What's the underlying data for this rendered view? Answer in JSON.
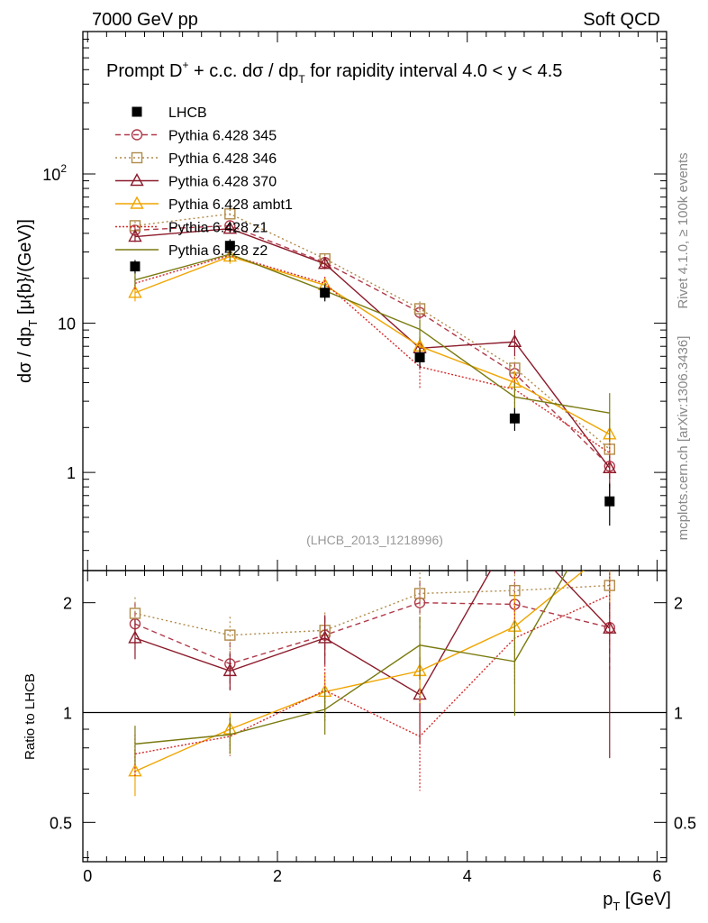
{
  "header": {
    "left": "7000 GeV pp",
    "right": "Soft QCD"
  },
  "side_labels": {
    "rivet": "Rivet 4.1.0, ≥ 100k events",
    "mcplots": "mcplots.cern.ch [arXiv:1306.3436]"
  },
  "chart_data": {
    "type": "line",
    "title": "Prompt D⁺ + c.c.  dσ / dp_T for rapidity interval 4.0 < y < 4.5",
    "title_parts": {
      "main_a": "Prompt D",
      "sup": "+",
      "main_b": " + c.c.  dσ / dp",
      "sub": "T",
      "main_c": " for rapidity interval 4.0 < y < 4.5"
    },
    "analysis_id": "(LHCB_2013_I1218996)",
    "xlabel": "p_T [GeV]",
    "xlabel_parts": {
      "p": "p",
      "sub": "T",
      "unit": " [GeV]"
    },
    "ylabel": "dσ / dp_T [μ{b}/(GeV)]",
    "ylabel_parts": {
      "a": "dσ / dp",
      "sub": "T",
      "b": " [μ{b}/(GeV)]"
    },
    "ratio_ylabel": "Ratio to LHCB",
    "xlim": [
      -0.05,
      6.1
    ],
    "ylim": [
      0.22,
      900
    ],
    "ratio_ylim": [
      0.39,
      2.45
    ],
    "x_ticks": [
      {
        "value": 0,
        "label": "0"
      },
      {
        "value": 2,
        "label": "2"
      },
      {
        "value": 4,
        "label": "4"
      },
      {
        "value": 6,
        "label": "6"
      }
    ],
    "y_major_ticks": [
      {
        "value": 1,
        "label": "1"
      },
      {
        "value": 10,
        "label": "10"
      },
      {
        "value": 100,
        "label": "10",
        "sup": "2"
      }
    ],
    "ratio_ticks": [
      {
        "value": 0.5,
        "label": "0.5"
      },
      {
        "value": 1,
        "label": "1"
      },
      {
        "value": 2,
        "label": "2"
      }
    ],
    "x": [
      0.5,
      1.5,
      2.5,
      3.5,
      4.5,
      5.5
    ],
    "data": {
      "name": "LHCB",
      "values": [
        24,
        33,
        16,
        5.9,
        2.3,
        0.64
      ],
      "errors": [
        2.5,
        3.5,
        2.0,
        0.9,
        0.4,
        0.2
      ]
    },
    "series": [
      {
        "name": "Pythia 6.428 345",
        "color": "#b03a4a",
        "dash": "6,4",
        "marker": "circle",
        "values": [
          42,
          45,
          25.5,
          11.8,
          4.6,
          1.1
        ],
        "errors": [
          3,
          3,
          2,
          1.5,
          0.8,
          0.4
        ],
        "ratio": [
          1.75,
          1.36,
          1.63,
          2.0,
          1.98,
          1.71
        ],
        "ratio_errors": [
          0.25,
          0.2,
          0.2,
          0.3,
          0.3,
          0.4
        ]
      },
      {
        "name": "Pythia 6.428 346",
        "color": "#b08a4a",
        "dash": "2,3",
        "marker": "square",
        "values": [
          45,
          54,
          27,
          12.5,
          5.0,
          1.43
        ],
        "errors": [
          3,
          4,
          2,
          1.5,
          0.9,
          0.4
        ],
        "ratio": [
          1.87,
          1.63,
          1.68,
          2.12,
          2.16,
          2.23
        ],
        "ratio_errors": [
          0.2,
          0.2,
          0.2,
          0.3,
          0.3,
          0.5
        ]
      },
      {
        "name": "Pythia 6.428 370",
        "color": "#8b1a2a",
        "dash": "",
        "marker": "triangle",
        "values": [
          38,
          43,
          25,
          6.8,
          7.5,
          1.07
        ],
        "errors": [
          3,
          3,
          2,
          1.2,
          1.5,
          0.4
        ],
        "ratio": [
          1.6,
          1.3,
          1.6,
          1.12,
          3.2,
          1.7
        ],
        "ratio_errors": [
          0.2,
          0.15,
          0.25,
          0.3,
          0.8,
          0.95
        ]
      },
      {
        "name": "Pythia 6.428 ambt1",
        "color": "#f0a500",
        "dash": "",
        "marker": "triangle",
        "values": [
          16,
          28,
          18,
          7.0,
          4.0,
          1.8
        ],
        "errors": [
          2,
          3,
          2,
          1.2,
          0.8,
          0.5
        ],
        "ratio": [
          0.69,
          0.9,
          1.14,
          1.3,
          1.72,
          2.8
        ],
        "ratio_errors": [
          0.1,
          0.1,
          0.15,
          0.25,
          0.4,
          0.8
        ]
      },
      {
        "name": "Pythia 6.428 z1",
        "color": "#d42a2a",
        "dash": "2,2",
        "marker": "none",
        "values": [
          18.5,
          28.5,
          18.5,
          5.1,
          3.6,
          1.35
        ],
        "errors": [
          2,
          3,
          2,
          1.5,
          0.8,
          0.4
        ],
        "ratio": [
          0.77,
          0.86,
          1.15,
          0.86,
          1.6,
          2.1
        ],
        "ratio_errors": [
          0.1,
          0.1,
          0.2,
          0.25,
          0.4,
          0.6
        ]
      },
      {
        "name": "Pythia 6.428 z2",
        "color": "#7a7a10",
        "dash": "",
        "marker": "none",
        "values": [
          19.5,
          29,
          16.5,
          9.1,
          3.2,
          2.5
        ],
        "errors": [
          2,
          3,
          2,
          1.5,
          0.8,
          0.9
        ],
        "ratio": [
          0.82,
          0.87,
          1.02,
          1.53,
          1.38,
          3.9
        ],
        "ratio_errors": [
          0.1,
          0.1,
          0.15,
          0.3,
          0.4,
          1.2
        ]
      }
    ]
  }
}
